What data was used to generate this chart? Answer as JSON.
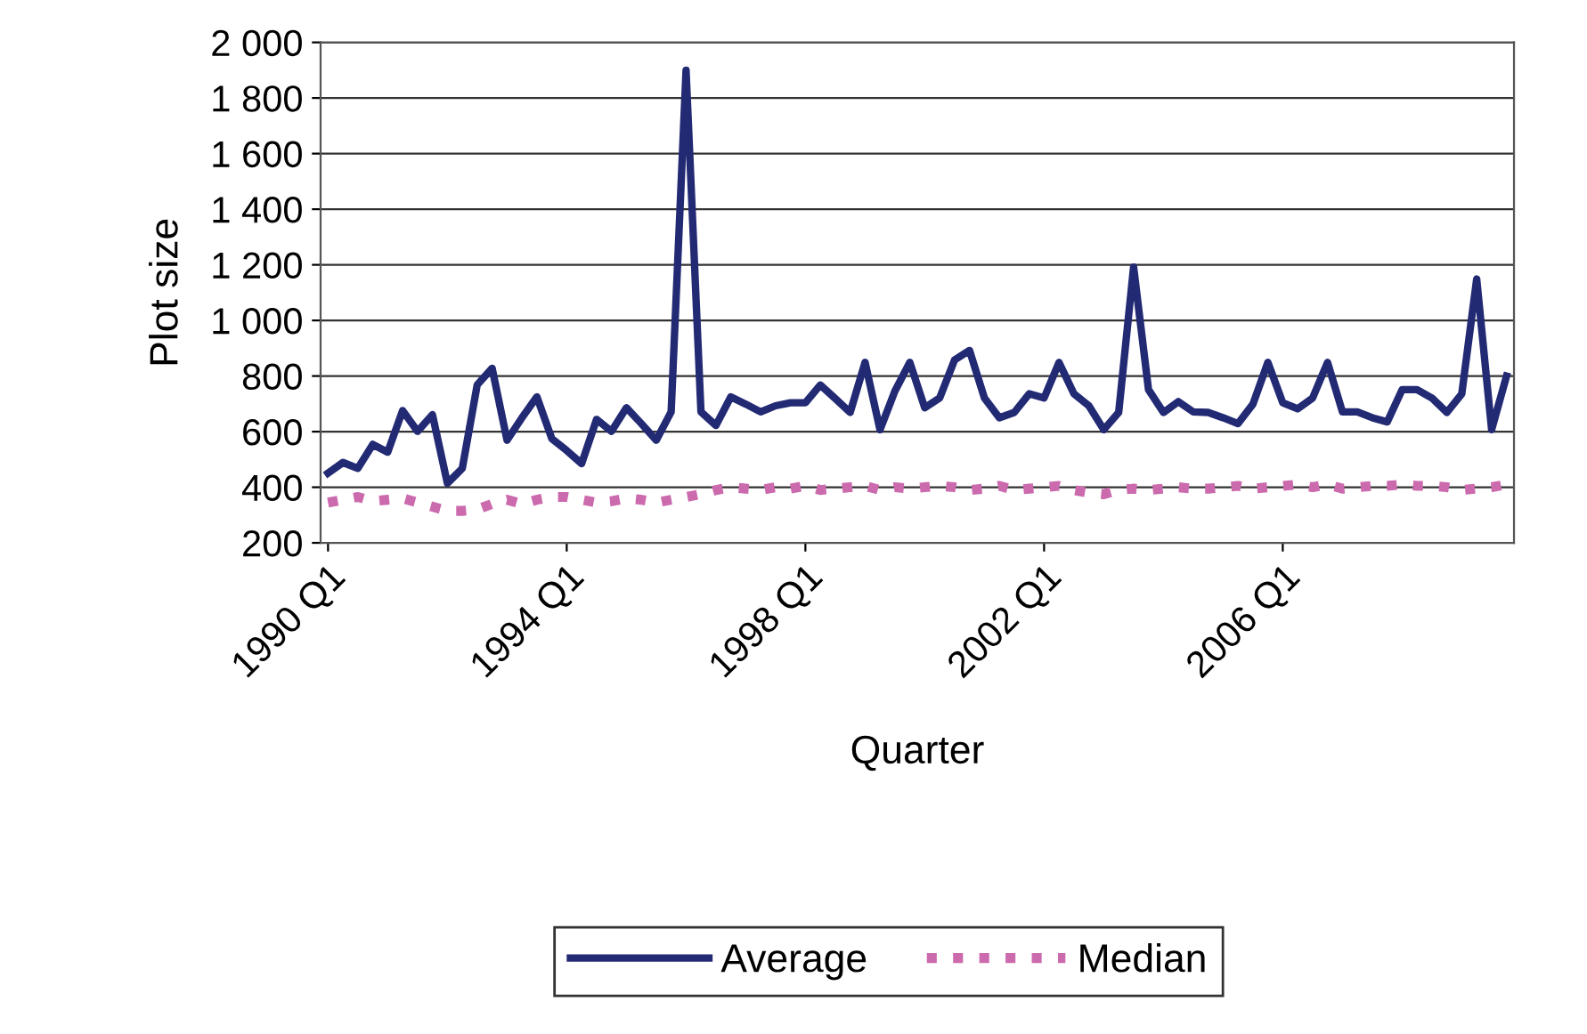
{
  "chart_data": {
    "type": "line",
    "xlabel": "Quarter",
    "ylabel": "Plot size",
    "categories": [
      "1990 Q1",
      null,
      null,
      null,
      null,
      null,
      null,
      null,
      null,
      null,
      null,
      null,
      null,
      null,
      null,
      null,
      "1994 Q1",
      null,
      null,
      null,
      null,
      null,
      null,
      null,
      null,
      null,
      null,
      null,
      null,
      null,
      null,
      null,
      "1998 Q1",
      null,
      null,
      null,
      null,
      null,
      null,
      null,
      null,
      null,
      null,
      null,
      null,
      null,
      null,
      null,
      "2002 Q1",
      null,
      null,
      null,
      null,
      null,
      null,
      null,
      null,
      null,
      null,
      null,
      null,
      null,
      null,
      null,
      "2006 Q1",
      null,
      null,
      null,
      null,
      null,
      null,
      null,
      null,
      null,
      null,
      null,
      null,
      null,
      null,
      null
    ],
    "series": [
      {
        "name": "Average",
        "color": "#232a74",
        "line_style": "solid",
        "values": [
          451,
          489,
          468,
          554,
          526,
          676,
          601,
          661,
          414,
          468,
          768,
          828,
          569,
          650,
          725,
          575,
          532,
          485,
          644,
          601,
          686,
          629,
          569,
          671,
          1900,
          671,
          622,
          725,
          699,
          671,
          693,
          704,
          704,
          768,
          719,
          669,
          849,
          607,
          746,
          849,
          686,
          721,
          858,
          892,
          721,
          650,
          669,
          736,
          721,
          849,
          736,
          693,
          607,
          669,
          1192,
          751,
          669,
          708,
          671,
          669,
          650,
          629,
          699,
          849,
          704,
          682,
          721,
          849,
          671,
          671,
          650,
          635,
          751,
          751,
          721,
          669,
          736,
          1149,
          607,
          800
        ]
      },
      {
        "name": "Median",
        "color": "#cc6aae",
        "line_style": "dotted",
        "values": [
          345,
          355,
          365,
          350,
          355,
          360,
          345,
          330,
          315,
          315,
          320,
          340,
          355,
          340,
          355,
          365,
          365,
          355,
          345,
          350,
          360,
          355,
          345,
          355,
          365,
          375,
          390,
          400,
          395,
          390,
          400,
          395,
          405,
          390,
          395,
          400,
          405,
          390,
          400,
          395,
          400,
          405,
          400,
          390,
          395,
          405,
          390,
          395,
          400,
          405,
          390,
          380,
          375,
          390,
          395,
          390,
          395,
          400,
          395,
          395,
          400,
          405,
          395,
          400,
          405,
          410,
          400,
          410,
          395,
          400,
          405,
          405,
          410,
          405,
          405,
          400,
          390,
          395,
          400,
          410
        ]
      }
    ],
    "ylim": [
      200,
      2000
    ],
    "yticks": [
      {
        "value": 200,
        "label": "200"
      },
      {
        "value": 400,
        "label": "400"
      },
      {
        "value": 600,
        "label": "600"
      },
      {
        "value": 800,
        "label": "800"
      },
      {
        "value": 1000,
        "label": "1 000"
      },
      {
        "value": 1200,
        "label": "1 200"
      },
      {
        "value": 1400,
        "label": "1 400"
      },
      {
        "value": 1600,
        "label": "1 600"
      },
      {
        "value": 1800,
        "label": "1 800"
      },
      {
        "value": 2000,
        "label": "2 000"
      }
    ],
    "grid": "y",
    "legend": "bottom",
    "marker": "none"
  }
}
